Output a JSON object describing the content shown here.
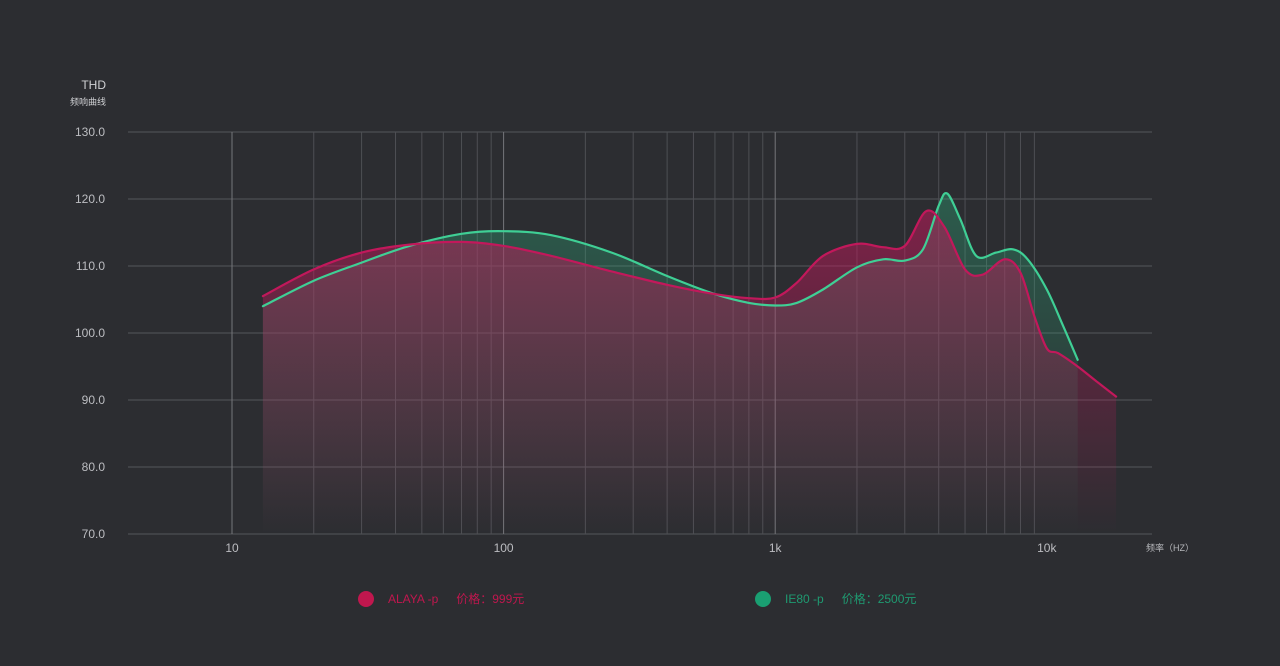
{
  "chart_data": {
    "type": "line",
    "ylabel": "THD",
    "ylabel_sub": "频响曲线",
    "xlabel": "频率（HZ）",
    "x_scale": "log",
    "xlim": [
      4,
      20000
    ],
    "ylim": [
      70,
      130
    ],
    "yticks": [
      70,
      80,
      90,
      100,
      110,
      120,
      130
    ],
    "ytick_labels": [
      "70.0",
      "80.0",
      "90.0",
      "100.0",
      "110.0",
      "120.0",
      "130.0"
    ],
    "xticks": [
      10,
      100,
      1000,
      10000
    ],
    "xtick_labels": [
      "10",
      "100",
      "1k",
      "10k"
    ],
    "grid": true,
    "series": [
      {
        "name": "ALAYA -p",
        "price_label": "价格：999元",
        "color": "#c2185b",
        "x": [
          13,
          20,
          30,
          45,
          70,
          100,
          150,
          250,
          400,
          600,
          800,
          1000,
          1200,
          1500,
          2000,
          2500,
          3000,
          3600,
          4200,
          5000,
          5800,
          7000,
          8000,
          9000,
          10000,
          11000,
          13000,
          15000,
          18000
        ],
        "y": [
          105.5,
          109.5,
          112.0,
          113.2,
          113.6,
          113.0,
          111.5,
          109.2,
          107.2,
          105.8,
          105.2,
          105.3,
          107.5,
          111.5,
          113.3,
          112.8,
          113.0,
          118.2,
          115.8,
          109.5,
          108.7,
          111.0,
          109.0,
          102.5,
          97.7,
          97.0,
          95.0,
          93.0,
          90.5
        ]
      },
      {
        "name": "IE80 -p",
        "price_label": "价格：2500元",
        "color": "#3fcf95",
        "x": [
          13,
          20,
          30,
          45,
          70,
          100,
          150,
          250,
          400,
          600,
          800,
          1000,
          1200,
          1500,
          2000,
          2500,
          3000,
          3500,
          4000,
          4300,
          4800,
          5500,
          6500,
          7500,
          8500,
          10000,
          11500,
          13000
        ],
        "y": [
          104.0,
          107.8,
          110.5,
          113.0,
          114.8,
          115.2,
          114.6,
          112.0,
          108.5,
          105.8,
          104.5,
          104.1,
          104.5,
          106.5,
          109.8,
          111.0,
          110.8,
          112.5,
          119.0,
          120.8,
          117.0,
          111.5,
          112.0,
          112.5,
          111.0,
          106.5,
          101.0,
          96.0
        ]
      }
    ]
  }
}
